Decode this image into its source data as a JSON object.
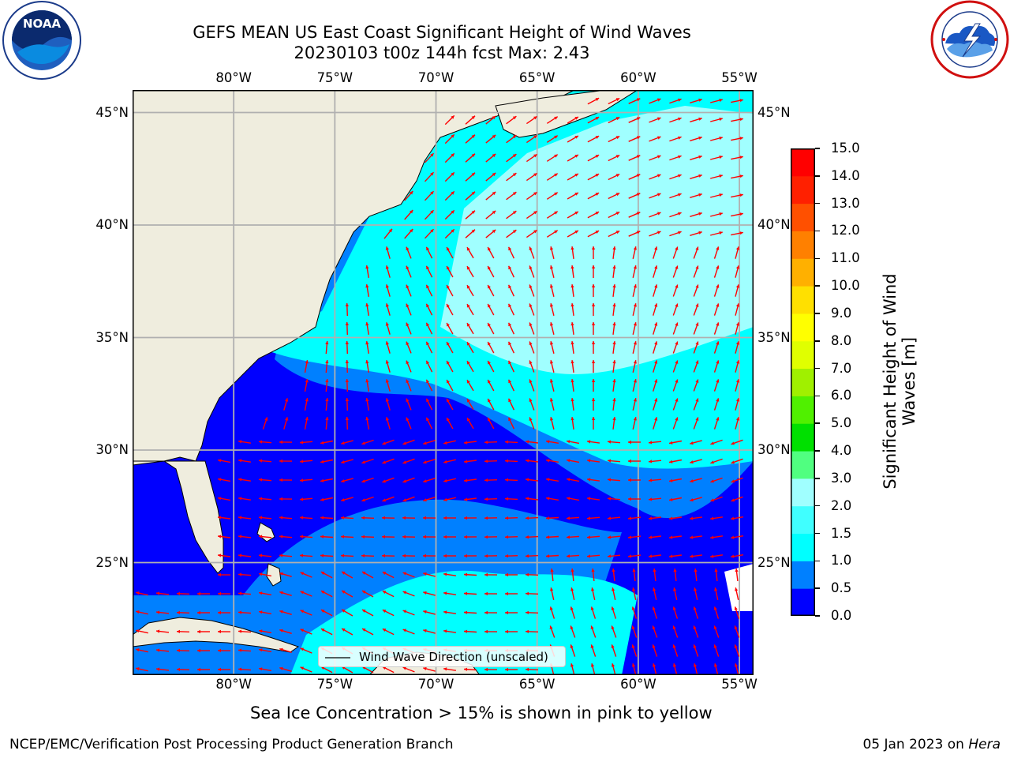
{
  "header": {
    "title_line1": "GEFS MEAN US East Coast Significant Height of Wind Waves",
    "title_line2": "20230103 t00z 144h fcst   Max: 2.43"
  },
  "logos": {
    "left": {
      "name": "noaa-logo",
      "text": "NOAA",
      "ring_text": "NATIONAL OCEANIC AND ATMOSPHERIC ADMINISTRATION · U.S. DEPARTMENT OF COMMERCE"
    },
    "right": {
      "name": "nws-logo",
      "ring_text": "NATIONAL WEATHER SERVICE"
    }
  },
  "map": {
    "lon_ticks": [
      "80°W",
      "75°W",
      "70°W",
      "65°W",
      "60°W",
      "55°W"
    ],
    "lat_ticks": [
      "45°N",
      "40°N",
      "35°N",
      "30°N",
      "25°N"
    ],
    "lon_values": [
      -80,
      -75,
      -70,
      -65,
      -60,
      -55
    ],
    "lat_values": [
      45,
      40,
      35,
      30,
      25
    ],
    "extent": {
      "lon_min": -85,
      "lon_max": -54.3,
      "lat_min": 20,
      "lat_max": 46
    },
    "legend_label": "Wind Wave Direction (unscaled)",
    "arrow_color": "#ff0000",
    "land_color": "#efedde",
    "grid_color": "#b0b0b0"
  },
  "colorbar": {
    "label_line1": "Significant Height of Wind",
    "label_line2": "Waves [m]",
    "ticks": [
      "0.0",
      "0.5",
      "1.0",
      "1.5",
      "2.0",
      "3.0",
      "4.0",
      "5.0",
      "6.0",
      "7.0",
      "8.0",
      "9.0",
      "10.0",
      "11.0",
      "12.0",
      "13.0",
      "14.0",
      "15.0"
    ],
    "colors": [
      "#0000ff",
      "#0080ff",
      "#00ffff",
      "#40ffff",
      "#a0ffff",
      "#50ff80",
      "#00e000",
      "#50f000",
      "#a0f000",
      "#e0ff00",
      "#ffff00",
      "#ffe000",
      "#ffb000",
      "#ff8000",
      "#ff5000",
      "#ff2000",
      "#ff0000"
    ]
  },
  "caption": "Sea Ice Concentration > 15% is shown in pink to yellow",
  "footer": {
    "left": "NCEP/EMC/Verification Post Processing Product Generation Branch",
    "right_date": "05 Jan 2023 on ",
    "right_host": "Hera"
  }
}
